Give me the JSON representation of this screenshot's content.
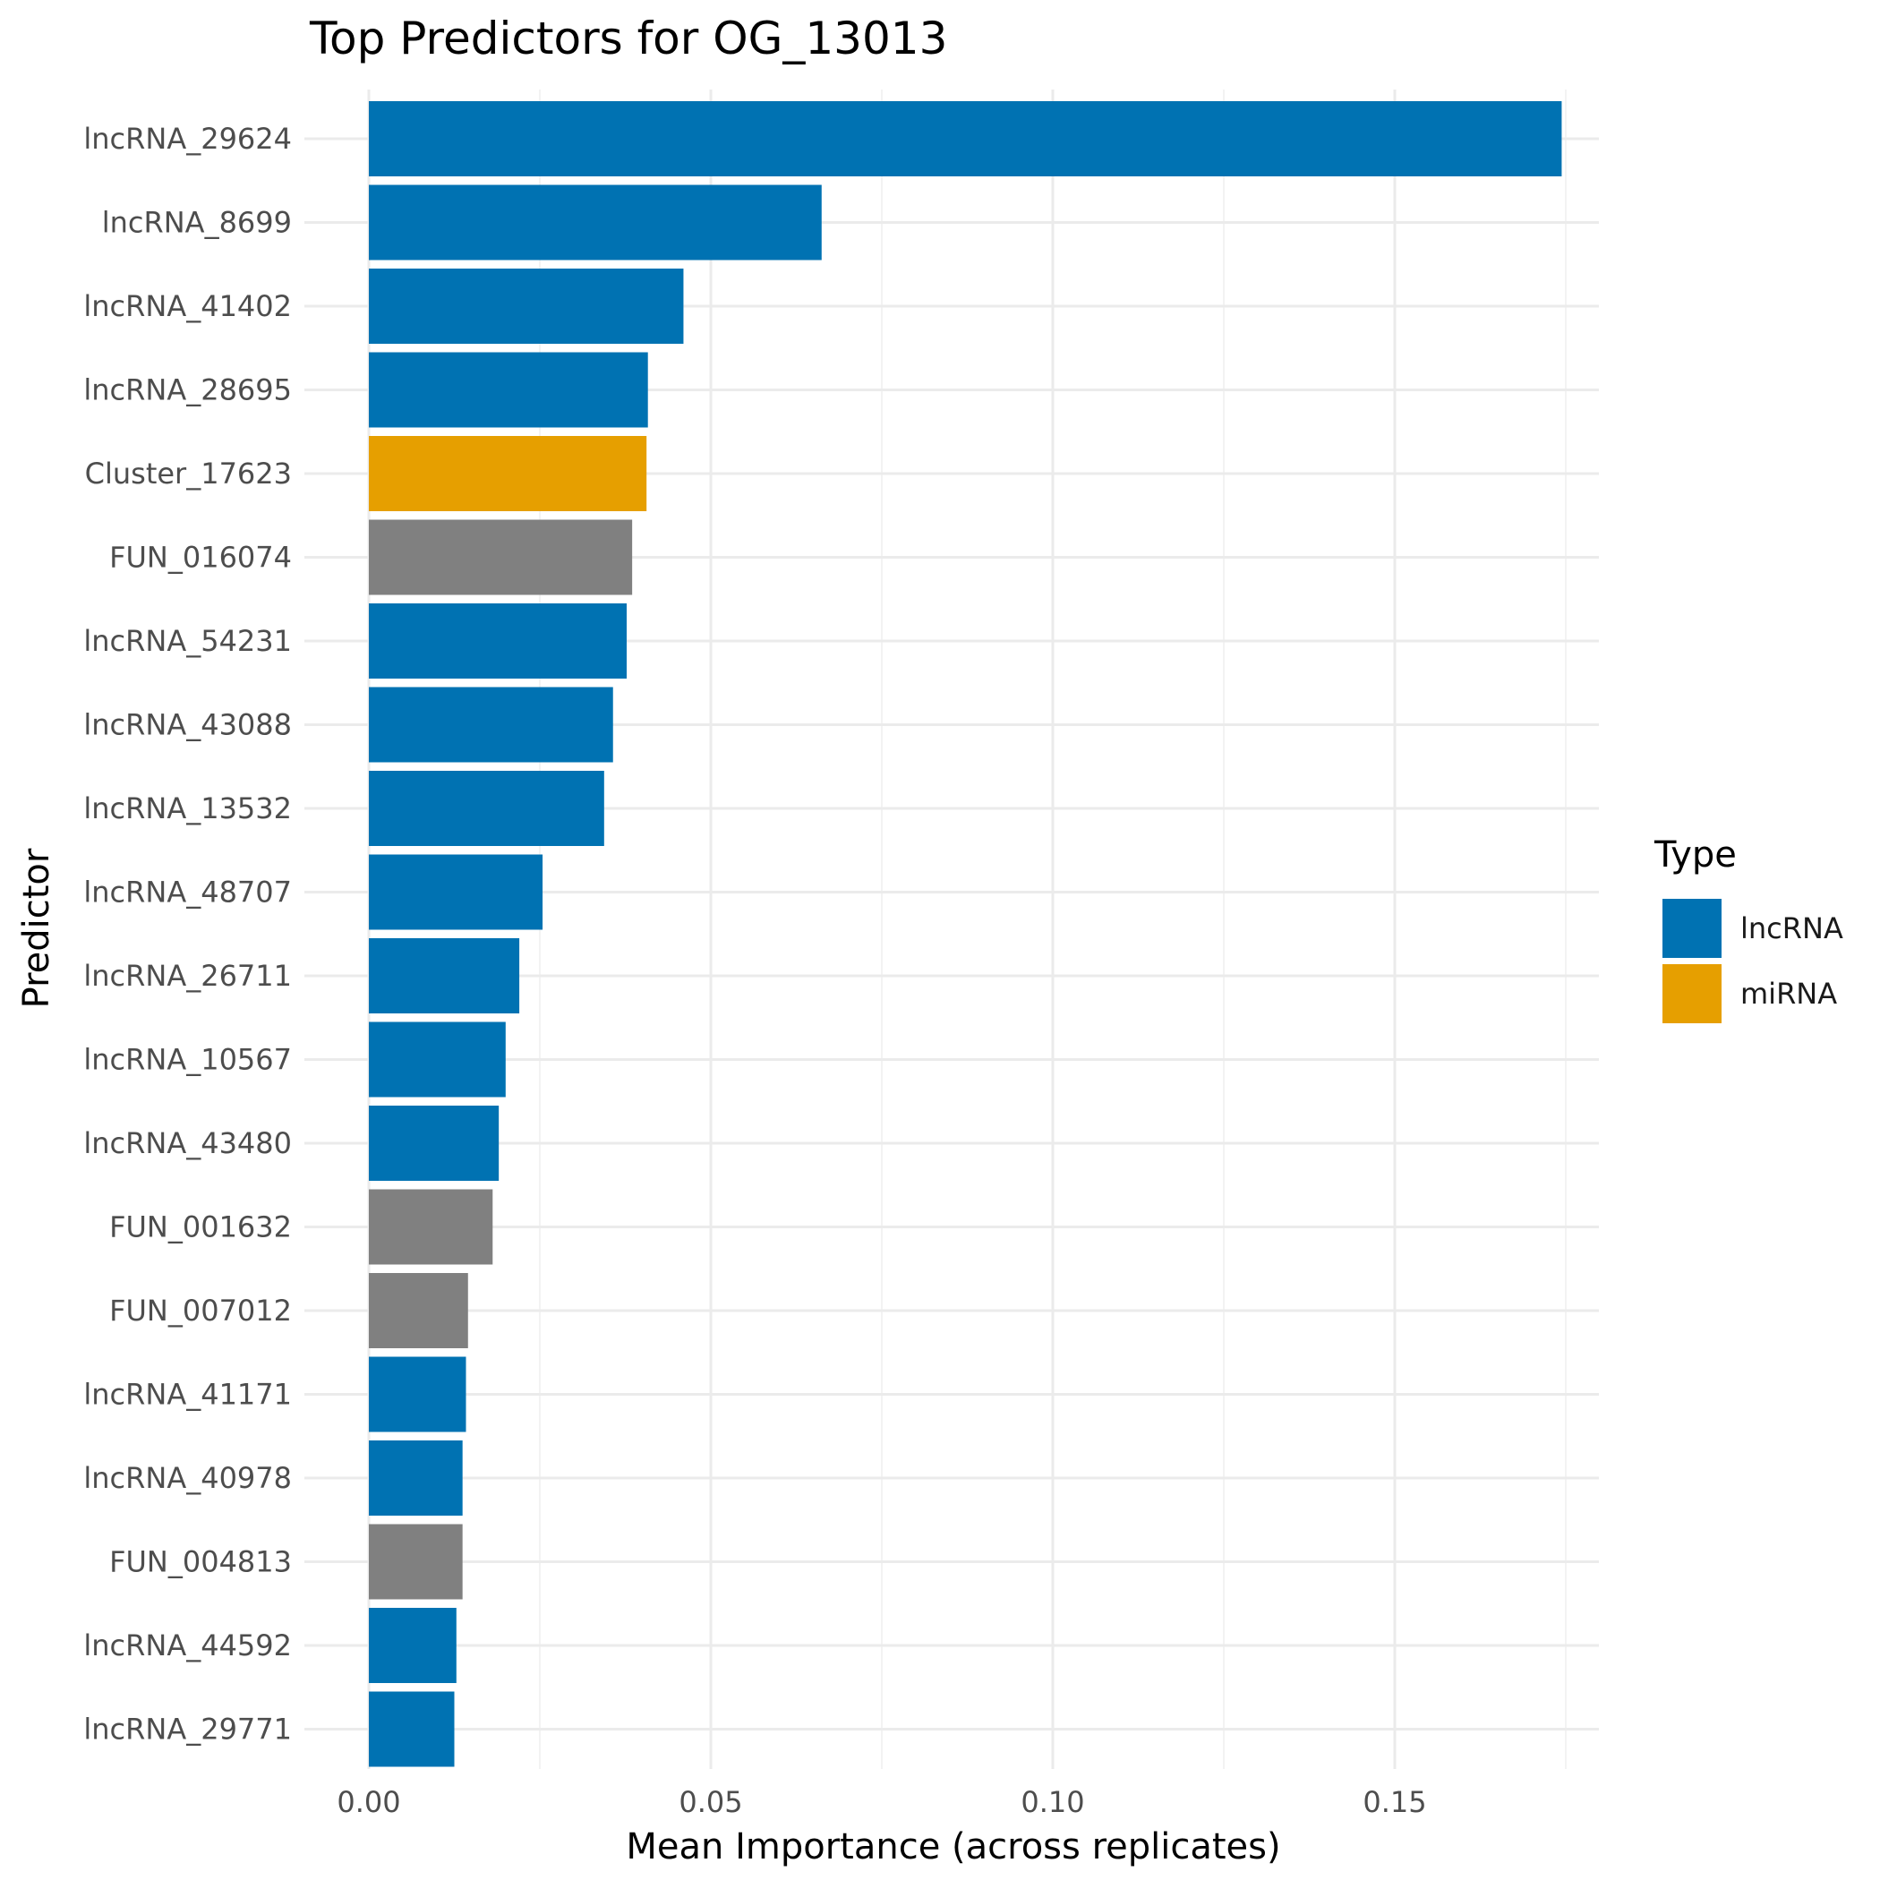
{
  "chart_data": {
    "type": "bar",
    "orientation": "horizontal",
    "title": "Top Predictors for OG_13013",
    "xlabel": "Mean Importance (across replicates)",
    "ylabel": "Predictor",
    "xlim": [
      0,
      0.183
    ],
    "x_ticks": [
      0.0,
      0.05,
      0.1,
      0.15
    ],
    "x_tick_labels": [
      "0.00",
      "0.05",
      "0.10",
      "0.15"
    ],
    "grid": true,
    "legend": {
      "title": "Type",
      "placement": "right",
      "entries": [
        {
          "label": "lncRNA",
          "color": "#0072B2"
        },
        {
          "label": "miRNA",
          "color": "#E69F00"
        }
      ]
    },
    "type_colors": {
      "lncRNA": "#0072B2",
      "miRNA": "#E69F00",
      "gene": "#808080"
    },
    "categories": [
      "lncRNA_29624",
      "lncRNA_8699",
      "lncRNA_41402",
      "lncRNA_28695",
      "Cluster_17623",
      "FUN_016074",
      "lncRNA_54231",
      "lncRNA_43088",
      "lncRNA_13532",
      "lncRNA_48707",
      "lncRNA_26711",
      "lncRNA_10567",
      "lncRNA_43480",
      "FUN_001632",
      "FUN_007012",
      "lncRNA_41171",
      "lncRNA_40978",
      "FUN_004813",
      "lncRNA_44592",
      "lncRNA_29771"
    ],
    "values": [
      0.1744,
      0.0662,
      0.046,
      0.0408,
      0.0406,
      0.0385,
      0.0377,
      0.0357,
      0.0344,
      0.0254,
      0.022,
      0.02,
      0.019,
      0.0181,
      0.0145,
      0.0142,
      0.0137,
      0.0137,
      0.0128,
      0.0125
    ],
    "types": [
      "lncRNA",
      "lncRNA",
      "lncRNA",
      "lncRNA",
      "miRNA",
      "gene",
      "lncRNA",
      "lncRNA",
      "lncRNA",
      "lncRNA",
      "lncRNA",
      "lncRNA",
      "lncRNA",
      "gene",
      "gene",
      "lncRNA",
      "lncRNA",
      "gene",
      "lncRNA",
      "lncRNA"
    ]
  }
}
